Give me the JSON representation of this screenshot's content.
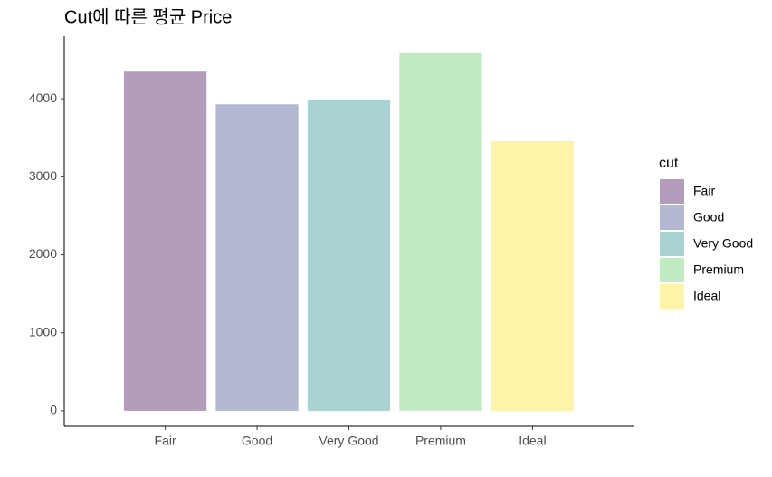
{
  "chart_data": {
    "type": "bar",
    "title": "Cut에 따른 평균 Price",
    "categories": [
      "Fair",
      "Good",
      "Very Good",
      "Premium",
      "Ideal"
    ],
    "values": [
      4359,
      3929,
      3982,
      4584,
      3458
    ],
    "colors": [
      "#b39bbb",
      "#b3b9d3",
      "#a8d3d2",
      "#c2eac2",
      "#fdf4a8"
    ],
    "legend_title": "cut",
    "legend": "right",
    "ylim": [
      -198,
      4802
    ],
    "yticks": [
      0,
      1000,
      2000,
      3000,
      4000
    ],
    "grid": false
  }
}
